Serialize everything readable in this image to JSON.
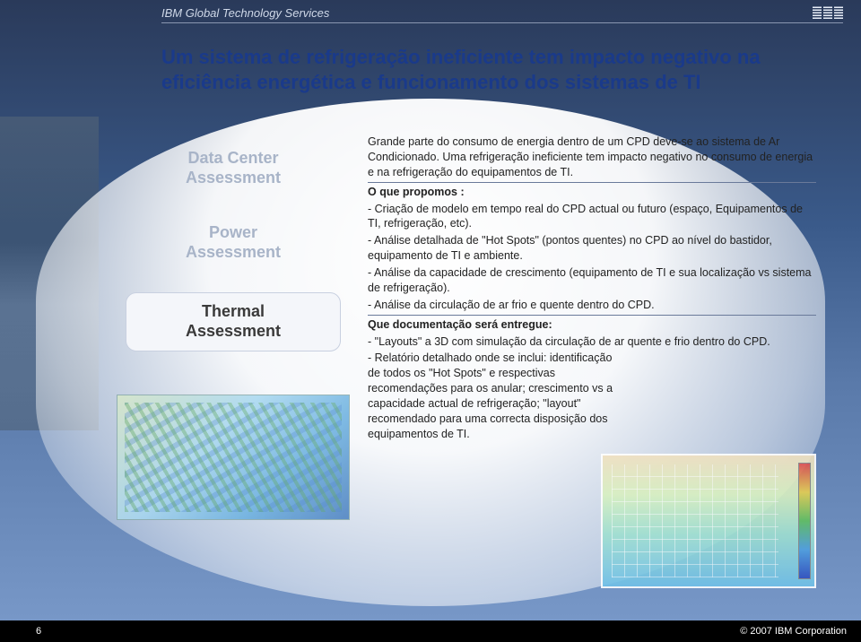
{
  "header": {
    "brand": "IBM Global Technology Services"
  },
  "title": "Um sistema de refrigeração ineficiente tem impacto negativo na eficiência energética e funcionamento dos sistemas de TI",
  "pills": {
    "data_center": "Data Center\nAssessment",
    "power": "Power\nAssessment",
    "thermal": "Thermal\nAssessment"
  },
  "body": {
    "intro": "Grande parte do consumo de energia dentro de um CPD deve-se ao sistema de Ar Condicionado. Uma refrigeração ineficiente tem impacto negativo no consumo de energia e na refrigeração do equipamentos de TI.",
    "propomos_label": "O que propomos :",
    "propomos_items": [
      "- Criação de modelo em tempo real do CPD actual ou futuro (espaço, Equipamentos de TI, refrigeração, etc).",
      "- Análise detalhada de \"Hot Spots\" (pontos quentes) no CPD ao nível do bastidor, equipamento de TI e ambiente.",
      "- Análise da capacidade de crescimento (equipamento de TI e sua localização vs sistema de refrigeração).",
      "- Análise da circulação de ar frio e quente dentro do CPD."
    ],
    "doc_label": "Que documentação será entregue:",
    "doc_items": [
      "- \"Layouts\" a 3D com simulação da circulação de ar quente e frio dentro do CPD.",
      "- Relatório detalhado onde se inclui: identificação de todos os \"Hot Spots\" e respectivas recomendações para os anular; crescimento vs a capacidade actual de refrigeração; \"layout\" recomendado para uma correcta disposição dos equipamentos de TI."
    ]
  },
  "footer": {
    "page": "6",
    "copyright": "© 2007 IBM Corporation"
  },
  "colors": {
    "title": "#1a3a8a",
    "dim_text": "#a8b4c8",
    "body_text": "#222222"
  }
}
